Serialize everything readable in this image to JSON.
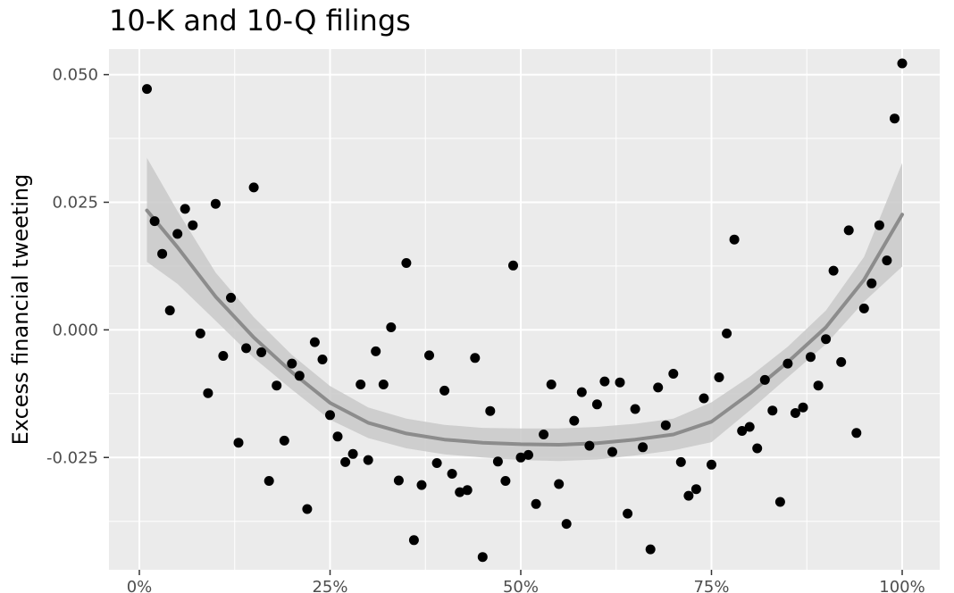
{
  "chart_data": {
    "type": "scatter",
    "title": "10-K and 10-Q filings",
    "xlabel": "",
    "ylabel": "Excess financial tweeting",
    "xlim": [
      0,
      100
    ],
    "ylim": [
      -0.047,
      0.055
    ],
    "x_ticks": [
      {
        "value": 0,
        "label": "0%"
      },
      {
        "value": 25,
        "label": "25%"
      },
      {
        "value": 50,
        "label": "50%"
      },
      {
        "value": 75,
        "label": "75%"
      },
      {
        "value": 100,
        "label": "100%"
      }
    ],
    "y_ticks": [
      {
        "value": 0.05,
        "label": "0.050"
      },
      {
        "value": 0.025,
        "label": "0.025"
      },
      {
        "value": 0.0,
        "label": "0.000"
      },
      {
        "value": -0.025,
        "label": "-0.025"
      }
    ],
    "grid": true,
    "points": [
      [
        1,
        0.0472
      ],
      [
        2,
        0.0213
      ],
      [
        3,
        0.0149
      ],
      [
        4,
        0.0038
      ],
      [
        5,
        0.0188
      ],
      [
        6,
        0.0237
      ],
      [
        7,
        0.0205
      ],
      [
        8,
        -0.0007
      ],
      [
        9,
        -0.0124
      ],
      [
        10,
        0.0247
      ],
      [
        11,
        -0.0051
      ],
      [
        12,
        0.0063
      ],
      [
        13,
        -0.0221
      ],
      [
        14,
        -0.0036
      ],
      [
        15,
        0.0279
      ],
      [
        16,
        -0.0044
      ],
      [
        17,
        -0.0296
      ],
      [
        18,
        -0.0109
      ],
      [
        19,
        -0.0217
      ],
      [
        20,
        -0.0066
      ],
      [
        21,
        -0.009
      ],
      [
        22,
        -0.0351
      ],
      [
        23,
        -0.0024
      ],
      [
        24,
        -0.0058
      ],
      [
        25,
        -0.0167
      ],
      [
        26,
        -0.0209
      ],
      [
        27,
        -0.0259
      ],
      [
        28,
        -0.0243
      ],
      [
        29,
        -0.0107
      ],
      [
        30,
        -0.0255
      ],
      [
        31,
        -0.0042
      ],
      [
        32,
        -0.0107
      ],
      [
        33,
        0.0005
      ],
      [
        34,
        -0.0295
      ],
      [
        35,
        0.0131
      ],
      [
        36,
        -0.0412
      ],
      [
        37,
        -0.0304
      ],
      [
        38,
        -0.005
      ],
      [
        39,
        -0.0261
      ],
      [
        40,
        -0.0119
      ],
      [
        41,
        -0.0282
      ],
      [
        42,
        -0.0318
      ],
      [
        43,
        -0.0314
      ],
      [
        44,
        -0.0055
      ],
      [
        45,
        -0.0445
      ],
      [
        46,
        -0.0159
      ],
      [
        47,
        -0.0258
      ],
      [
        48,
        -0.0296
      ],
      [
        49,
        0.0126
      ],
      [
        50,
        -0.025
      ],
      [
        51,
        -0.0245
      ],
      [
        52,
        -0.0341
      ],
      [
        53,
        -0.0205
      ],
      [
        54,
        -0.0107
      ],
      [
        55,
        -0.0302
      ],
      [
        56,
        -0.038
      ],
      [
        57,
        -0.0178
      ],
      [
        58,
        -0.0122
      ],
      [
        59,
        -0.0227
      ],
      [
        60,
        -0.0146
      ],
      [
        61,
        -0.0101
      ],
      [
        62,
        -0.0239
      ],
      [
        63,
        -0.0103
      ],
      [
        64,
        -0.036
      ],
      [
        65,
        -0.0155
      ],
      [
        66,
        -0.023
      ],
      [
        67,
        -0.043
      ],
      [
        68,
        -0.0113
      ],
      [
        69,
        -0.0187
      ],
      [
        70,
        -0.0086
      ],
      [
        71,
        -0.0259
      ],
      [
        72,
        -0.0325
      ],
      [
        73,
        -0.0312
      ],
      [
        74,
        -0.0134
      ],
      [
        75,
        -0.0264
      ],
      [
        76,
        -0.0093
      ],
      [
        77,
        -0.0007
      ],
      [
        78,
        0.0177
      ],
      [
        79,
        -0.0198
      ],
      [
        80,
        -0.019
      ],
      [
        81,
        -0.0232
      ],
      [
        82,
        -0.0098
      ],
      [
        83,
        -0.0158
      ],
      [
        84,
        -0.0337
      ],
      [
        85,
        -0.0066
      ],
      [
        86,
        -0.0163
      ],
      [
        87,
        -0.0152
      ],
      [
        88,
        -0.0053
      ],
      [
        89,
        -0.0109
      ],
      [
        90,
        -0.0018
      ],
      [
        91,
        0.0116
      ],
      [
        92,
        -0.0063
      ],
      [
        93,
        0.0195
      ],
      [
        94,
        -0.0202
      ],
      [
        95,
        0.0042
      ],
      [
        96,
        0.0091
      ],
      [
        97,
        0.0205
      ],
      [
        98,
        0.0136
      ],
      [
        99,
        0.0414
      ],
      [
        100,
        0.0522
      ]
    ],
    "smooth": {
      "x": [
        1,
        5,
        10,
        15,
        20,
        25,
        30,
        35,
        40,
        45,
        50,
        55,
        60,
        65,
        70,
        75,
        80,
        85,
        90,
        95,
        100
      ],
      "y": [
        0.0234,
        0.0162,
        0.0065,
        -0.0015,
        -0.0083,
        -0.0143,
        -0.0182,
        -0.0203,
        -0.0215,
        -0.0221,
        -0.0224,
        -0.0225,
        -0.0222,
        -0.0215,
        -0.0205,
        -0.018,
        -0.0125,
        -0.0063,
        0.0005,
        0.0098,
        0.0226
      ],
      "lower": [
        0.0133,
        0.009,
        0.0018,
        -0.0055,
        -0.0117,
        -0.0176,
        -0.0212,
        -0.0232,
        -0.0244,
        -0.025,
        -0.0255,
        -0.0257,
        -0.0254,
        -0.0246,
        -0.0236,
        -0.022,
        -0.0158,
        -0.0093,
        -0.0028,
        0.0055,
        0.0124
      ],
      "upper": [
        0.0337,
        0.0233,
        0.0112,
        0.0025,
        -0.0049,
        -0.011,
        -0.0152,
        -0.0174,
        -0.0186,
        -0.0192,
        -0.0193,
        -0.0193,
        -0.019,
        -0.0184,
        -0.0174,
        -0.0142,
        -0.0092,
        -0.0033,
        0.0038,
        0.0143,
        0.0327
      ]
    },
    "colors": {
      "panel": "#ebebeb",
      "grid": "#ffffff",
      "point": "#000000",
      "line": "#8c8c8c",
      "ribbon": "#c9c9c9"
    }
  }
}
